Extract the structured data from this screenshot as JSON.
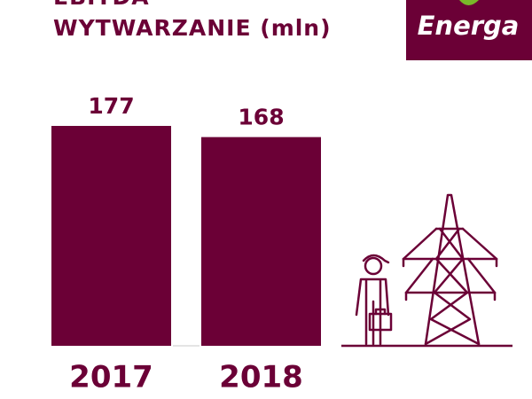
{
  "logo": "Energa",
  "chart_data": {
    "type": "bar",
    "title": [
      "EBITDA",
      "WYTWARZANIE (mln)"
    ],
    "categories": [
      "2017",
      "2018"
    ],
    "values": [
      177,
      168
    ],
    "color": "#6b0036"
  }
}
